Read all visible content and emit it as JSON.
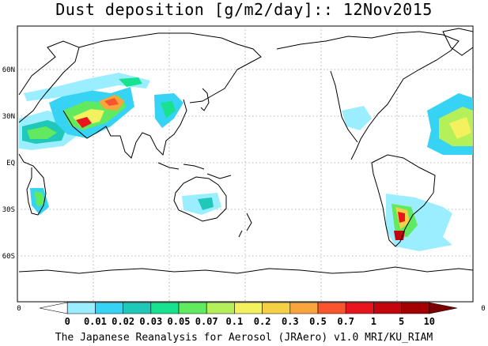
{
  "title": "Dust deposition [g/m2/day]:: 12Nov2015",
  "latitude_labels": [
    "60N",
    "30N",
    "EQ",
    "30S",
    "60S"
  ],
  "axis_edge_labels": {
    "left": "0",
    "right": "0"
  },
  "colorbar": {
    "labels": [
      "0",
      "0.01",
      "0.02",
      "0.03",
      "0.05",
      "0.07",
      "0.1",
      "0.2",
      "0.3",
      "0.5",
      "0.7",
      "1",
      "5",
      "10"
    ],
    "colors": [
      "#ffffff",
      "#9beeff",
      "#37d3f5",
      "#20c8b9",
      "#18e18f",
      "#61e95f",
      "#b4f05a",
      "#f3f15e",
      "#f5cf46",
      "#f9a43c",
      "#f8542e",
      "#e9151d",
      "#c3050e",
      "#a30000",
      "#7c0000"
    ]
  },
  "credit": "The Japanese Reanalysis for Aerosol (JRAero) v1.0 MRI/KU_RIAM"
}
